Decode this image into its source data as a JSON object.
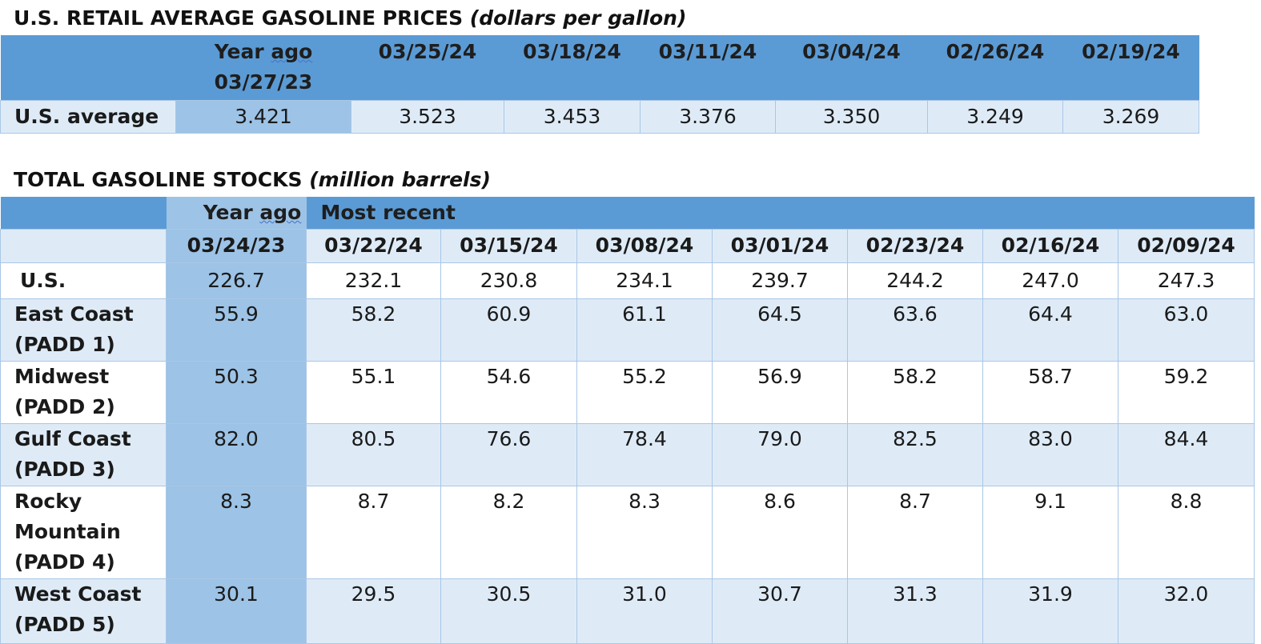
{
  "retail": {
    "title": "U.S. RETAIL AVERAGE GASOLINE PRICES",
    "unit": "(dollars per gallon)",
    "year_ago_label": "Year ago",
    "year_ago_date": "03/27/23",
    "dates": [
      "03/25/24",
      "03/18/24",
      "03/11/24",
      "03/04/24",
      "02/26/24",
      "02/19/24"
    ],
    "row_label": "U.S. average",
    "year_ago_value": "3.421",
    "values": [
      "3.523",
      "3.453",
      "3.376",
      "3.350",
      "3.249",
      "3.269"
    ]
  },
  "stocks": {
    "title": "TOTAL GASOLINE STOCKS",
    "unit": "(million barrels)",
    "year_ago_label": "Year ago",
    "most_recent_label": "Most recent",
    "year_ago_date": "03/24/23",
    "dates": [
      "03/22/24",
      "03/15/24",
      "03/08/24",
      "03/01/24",
      "02/23/24",
      "02/16/24",
      "02/09/24"
    ],
    "rows": [
      {
        "label": [
          "U.S."
        ],
        "year_ago": "226.7",
        "values": [
          "232.1",
          "230.8",
          "234.1",
          "239.7",
          "244.2",
          "247.0",
          "247.3"
        ]
      },
      {
        "label": [
          "East Coast",
          "(PADD 1)"
        ],
        "year_ago": "55.9",
        "values": [
          "58.2",
          "60.9",
          "61.1",
          "64.5",
          "63.6",
          "64.4",
          "63.0"
        ]
      },
      {
        "label": [
          "Midwest",
          "(PADD 2)"
        ],
        "year_ago": "50.3",
        "values": [
          "55.1",
          "54.6",
          "55.2",
          "56.9",
          "58.2",
          "58.7",
          "59.2"
        ]
      },
      {
        "label": [
          "Gulf Coast",
          "(PADD 3)"
        ],
        "year_ago": "82.0",
        "values": [
          "80.5",
          "76.6",
          "78.4",
          "79.0",
          "82.5",
          "83.0",
          "84.4"
        ]
      },
      {
        "label": [
          "Rocky",
          "Mountain",
          "(PADD 4)"
        ],
        "year_ago": "8.3",
        "values": [
          "8.7",
          "8.2",
          "8.3",
          "8.6",
          "8.7",
          "9.1",
          "8.8"
        ]
      },
      {
        "label": [
          "West Coast",
          "(PADD 5)"
        ],
        "year_ago": "30.1",
        "values": [
          "29.5",
          "30.5",
          "31.0",
          "30.7",
          "31.3",
          "31.9",
          "32.0"
        ]
      }
    ]
  }
}
